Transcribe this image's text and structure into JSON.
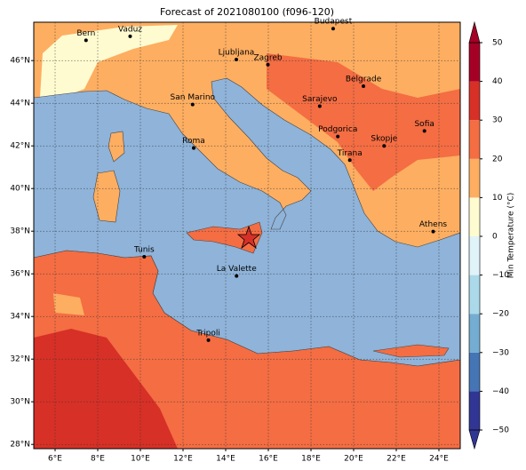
{
  "map": {
    "title": "Forecast of 2021080100 (f096-120)",
    "lon_range": [
      5,
      25
    ],
    "lat_range": [
      27.8,
      47.8
    ],
    "lon_ticks": [
      {
        "value": 6,
        "label": "6°E"
      },
      {
        "value": 8,
        "label": "8°E"
      },
      {
        "value": 10,
        "label": "10°E"
      },
      {
        "value": 12,
        "label": "12°E"
      },
      {
        "value": 14,
        "label": "14°E"
      },
      {
        "value": 16,
        "label": "16°E"
      },
      {
        "value": 18,
        "label": "18°E"
      },
      {
        "value": 20,
        "label": "20°E"
      },
      {
        "value": 22,
        "label": "22°E"
      },
      {
        "value": 24,
        "label": "24°E"
      }
    ],
    "lat_ticks": [
      {
        "value": 28,
        "label": "28°N"
      },
      {
        "value": 30,
        "label": "30°N"
      },
      {
        "value": 32,
        "label": "32°N"
      },
      {
        "value": 34,
        "label": "34°N"
      },
      {
        "value": 36,
        "label": "36°N"
      },
      {
        "value": 38,
        "label": "38°N"
      },
      {
        "value": 40,
        "label": "40°N"
      },
      {
        "value": 42,
        "label": "42°N"
      },
      {
        "value": 44,
        "label": "44°N"
      },
      {
        "value": 46,
        "label": "46°N"
      }
    ],
    "grid": true,
    "cities": [
      {
        "name": "Bern",
        "lon": 7.45,
        "lat": 46.95
      },
      {
        "name": "Vaduz",
        "lon": 9.52,
        "lat": 47.14
      },
      {
        "name": "Budapest",
        "lon": 19.04,
        "lat": 47.5
      },
      {
        "name": "Ljubljana",
        "lon": 14.5,
        "lat": 46.05
      },
      {
        "name": "Zagreb",
        "lon": 15.98,
        "lat": 45.81
      },
      {
        "name": "Belgrade",
        "lon": 20.46,
        "lat": 44.8
      },
      {
        "name": "San Marino",
        "lon": 12.45,
        "lat": 43.94
      },
      {
        "name": "Sarajevo",
        "lon": 18.41,
        "lat": 43.86
      },
      {
        "name": "Sofia",
        "lon": 23.32,
        "lat": 42.7
      },
      {
        "name": "Podgorica",
        "lon": 19.26,
        "lat": 42.44
      },
      {
        "name": "Skopje",
        "lon": 21.43,
        "lat": 42.0
      },
      {
        "name": "Roma",
        "lon": 12.5,
        "lat": 41.9
      },
      {
        "name": "Tirana",
        "lon": 19.82,
        "lat": 41.33
      },
      {
        "name": "Athens",
        "lon": 23.73,
        "lat": 37.98
      },
      {
        "name": "Tunis",
        "lon": 10.18,
        "lat": 36.8
      },
      {
        "name": "La Valette",
        "lon": 14.51,
        "lat": 35.9
      },
      {
        "name": "Tripoli",
        "lon": 13.19,
        "lat": 32.89
      }
    ],
    "colorbar": {
      "label": "Min Temperature (°C)",
      "ticks": [
        {
          "value": -50,
          "label": "−50"
        },
        {
          "value": -40,
          "label": "−40"
        },
        {
          "value": -30,
          "label": "−30"
        },
        {
          "value": -20,
          "label": "−20"
        },
        {
          "value": -10,
          "label": "−10"
        },
        0,
        10,
        20,
        30,
        40,
        50
      ],
      "colors": [
        "#313695",
        "#4575b4",
        "#74add1",
        "#abd9e9",
        "#e0f3f8",
        "#fffbd0",
        "#fdae61",
        "#f46d43",
        "#d73027",
        "#a50026"
      ]
    }
  }
}
